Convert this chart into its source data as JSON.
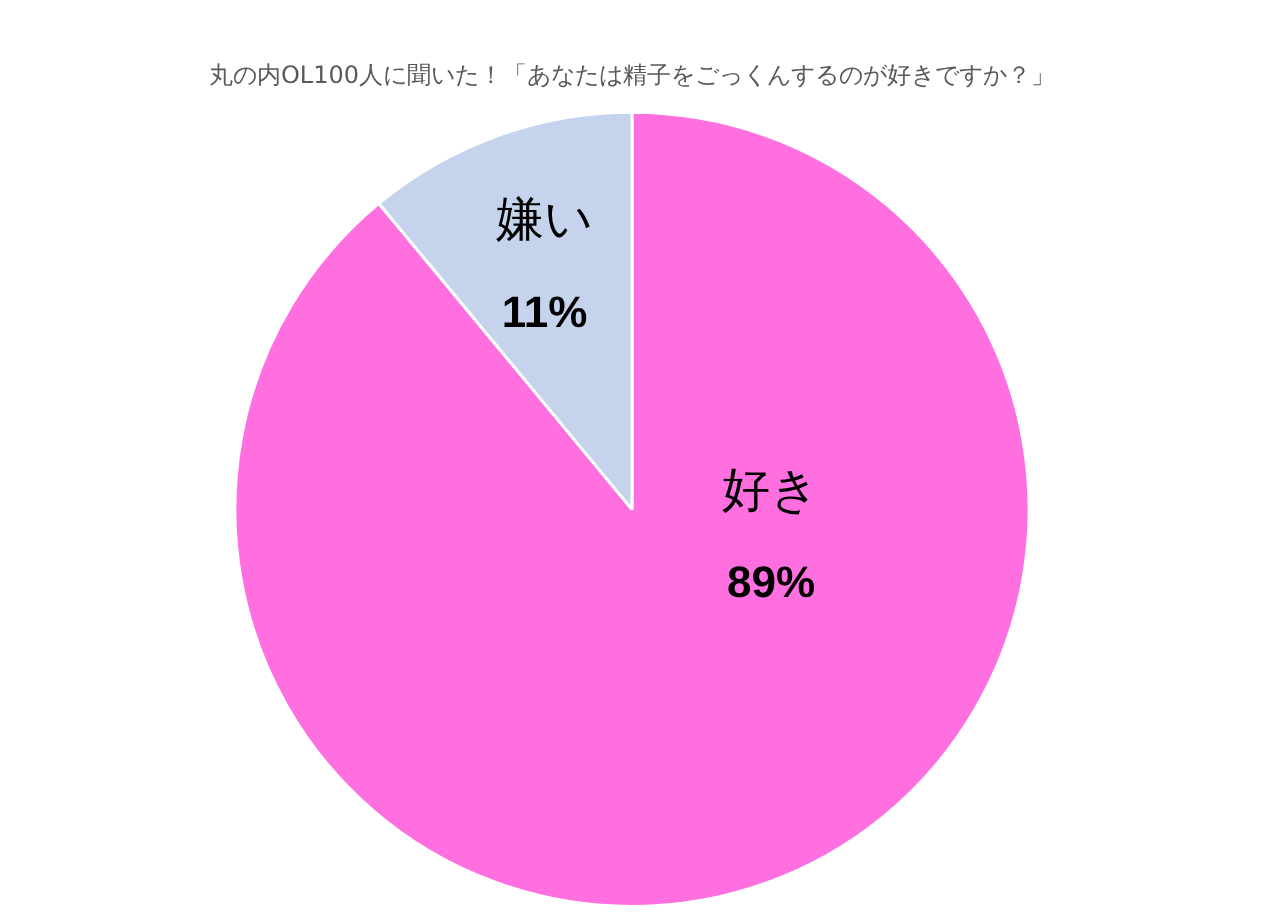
{
  "chart_data": {
    "type": "pie",
    "title": "丸の内OL100人に聞いた！「あなたは精子をごっくんするのが好きですか？」",
    "categories": [
      "好き",
      "嫌い"
    ],
    "values": [
      89,
      11
    ],
    "value_labels": [
      "89%",
      "11%"
    ],
    "colors": [
      "#ff6fe0",
      "#c5d3ec"
    ],
    "legend": false
  }
}
